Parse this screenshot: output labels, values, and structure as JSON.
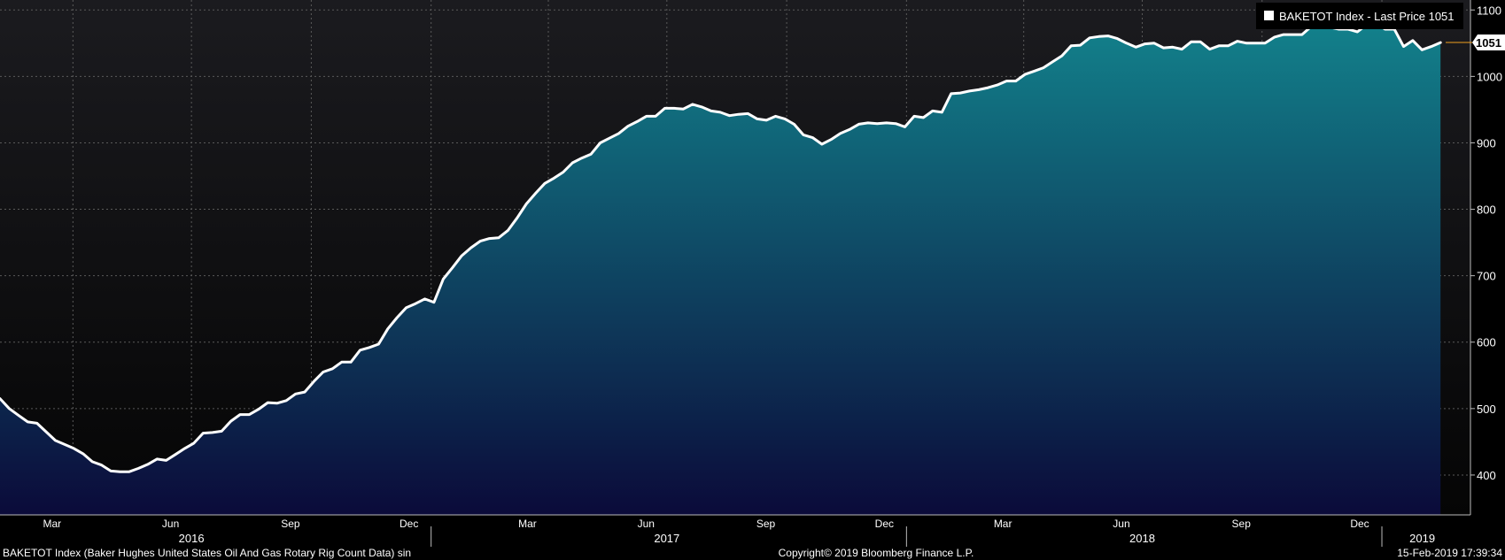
{
  "chart_data": {
    "type": "area",
    "ticker": "BAKETOT Index",
    "legend": {
      "label": "BAKETOT Index - Last Price 1051",
      "placement": "top-right"
    },
    "last_value": 1051,
    "last_value_label": "1051",
    "ylim": [
      340,
      1115
    ],
    "yticks": [
      400,
      500,
      600,
      700,
      800,
      900,
      1000,
      1100
    ],
    "ytick_labels": [
      "400",
      "500",
      "600",
      "700",
      "800",
      "900",
      "1000",
      "1100"
    ],
    "grid": true,
    "x_start": "2016-02-05",
    "x_end": "2019-02-15",
    "xlim": [
      "2016-02-05",
      "2019-03-10"
    ],
    "month_ticks": [
      {
        "label": "Mar",
        "date": "2016-03-16"
      },
      {
        "label": "Jun",
        "date": "2016-06-15"
      },
      {
        "label": "Sep",
        "date": "2016-09-15"
      },
      {
        "label": "Dec",
        "date": "2016-12-15"
      },
      {
        "label": "Mar",
        "date": "2017-03-16"
      },
      {
        "label": "Jun",
        "date": "2017-06-15"
      },
      {
        "label": "Sep",
        "date": "2017-09-15"
      },
      {
        "label": "Dec",
        "date": "2017-12-15"
      },
      {
        "label": "Mar",
        "date": "2018-03-16"
      },
      {
        "label": "Jun",
        "date": "2018-06-15"
      },
      {
        "label": "Sep",
        "date": "2018-09-15"
      },
      {
        "label": "Dec",
        "date": "2018-12-15"
      }
    ],
    "grid_dates": [
      "2016-04-01",
      "2016-07-01",
      "2016-10-01",
      "2017-01-01",
      "2017-04-01",
      "2017-07-01",
      "2017-10-01",
      "2018-01-01",
      "2018-04-01",
      "2018-07-01",
      "2018-10-01",
      "2019-01-01"
    ],
    "year_ticks": [
      {
        "label": "2016",
        "date": "2016-07-01"
      },
      {
        "label": "2017",
        "date": "2017-07-01"
      },
      {
        "label": "2018",
        "date": "2018-07-01"
      },
      {
        "label": "2019",
        "date": "2019-02-01"
      }
    ],
    "year_dividers": [
      "2017-01-01",
      "2018-01-01",
      "2019-01-01"
    ],
    "series": [
      {
        "values": [
          515,
          500,
          490,
          480,
          478,
          465,
          452,
          446,
          440,
          432,
          420,
          415,
          406,
          405,
          405,
          410,
          416,
          424,
          422,
          431,
          440,
          448,
          463,
          464,
          466,
          481,
          491,
          491,
          499,
          509,
          508,
          512,
          522,
          525,
          541,
          555,
          560,
          570,
          570,
          588,
          592,
          597,
          620,
          637,
          652,
          658,
          665,
          660,
          695,
          712,
          730,
          742,
          752,
          756,
          757,
          768,
          787,
          808,
          824,
          839,
          847,
          856,
          870,
          877,
          883,
          900,
          907,
          914,
          925,
          932,
          940,
          940,
          952,
          952,
          951,
          958,
          954,
          948,
          946,
          941,
          943,
          944,
          936,
          934,
          940,
          936,
          928,
          912,
          908,
          898,
          905,
          914,
          920,
          928,
          930,
          929,
          930,
          929,
          924,
          940,
          938,
          948,
          946,
          974,
          975,
          978,
          980,
          983,
          987,
          993,
          993,
          1003,
          1008,
          1013,
          1022,
          1031,
          1046,
          1047,
          1058,
          1060,
          1061,
          1057,
          1050,
          1044,
          1049,
          1050,
          1043,
          1044,
          1041,
          1052,
          1052,
          1041,
          1046,
          1046,
          1053,
          1050,
          1050,
          1050,
          1059,
          1063,
          1063,
          1063,
          1075,
          1076,
          1074,
          1071,
          1071,
          1067,
          1078,
          1080,
          1071,
          1071,
          1045,
          1054,
          1040,
          1045,
          1051
        ]
      }
    ],
    "footer": {
      "left": "BAKETOT Index (Baker Hughes United States Oil And Gas Rotary Rig Count Data) sin",
      "center": "Copyright© 2019 Bloomberg Finance L.P.",
      "right": "15-Feb-2019 17:39:34"
    },
    "colors": {
      "background": "#000000",
      "plot_top": "#1b1b1f",
      "plot_bottom": "#050505",
      "fill_top": "#127f8a",
      "fill_bottom": "#0b0b3a",
      "line": "#ffffff",
      "grid": "#5a5a5a",
      "ref_line": "#f0a020"
    }
  }
}
